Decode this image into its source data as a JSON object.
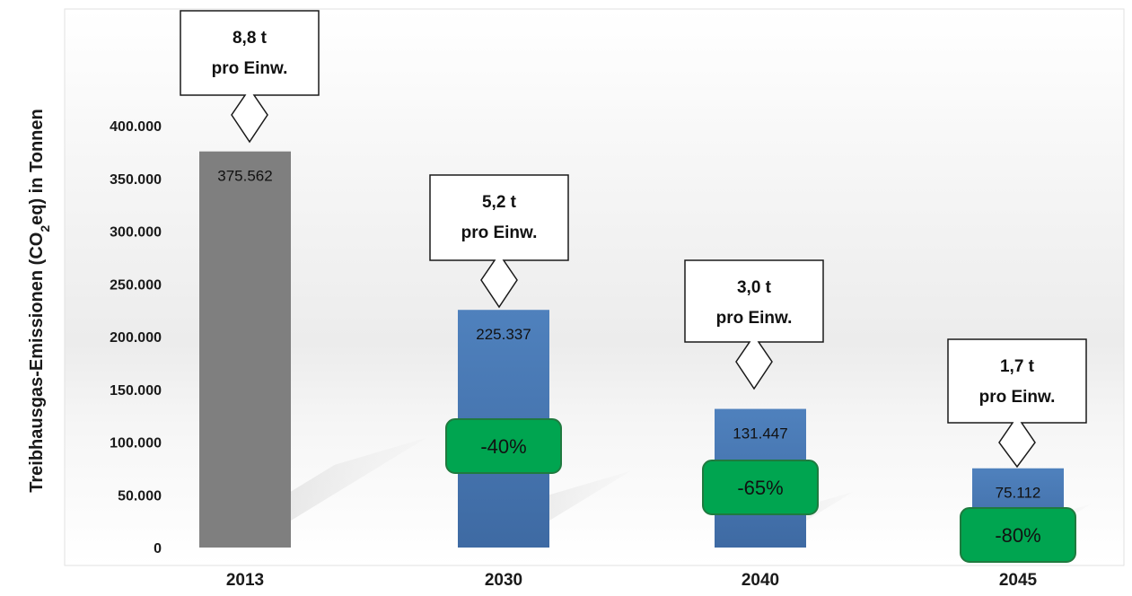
{
  "chart_data": {
    "type": "bar",
    "ylabel_main": "Treibhausgas-Emissionen (CO",
    "ylabel_sub": "2",
    "ylabel_tail": "eq) in Tonnen",
    "ylim": [
      0,
      400000
    ],
    "yticks": [
      {
        "value": 0,
        "label": "0"
      },
      {
        "value": 50000,
        "label": "50.000"
      },
      {
        "value": 100000,
        "label": "100.000"
      },
      {
        "value": 150000,
        "label": "150.000"
      },
      {
        "value": 200000,
        "label": "200.000"
      },
      {
        "value": 250000,
        "label": "250.000"
      },
      {
        "value": 300000,
        "label": "300.000"
      },
      {
        "value": 350000,
        "label": "350.000"
      },
      {
        "value": 400000,
        "label": "400.000"
      }
    ],
    "categories": [
      "2013",
      "2030",
      "2040",
      "2045"
    ],
    "values": [
      375562,
      225337,
      131447,
      75112
    ],
    "value_labels": [
      "375.562",
      "225.337",
      "131.447",
      "75.112"
    ],
    "per_capita": [
      {
        "value": "8,8 t",
        "unit": "pro Einw."
      },
      {
        "value": "5,2 t",
        "unit": "pro Einw."
      },
      {
        "value": "3,0 t",
        "unit": "pro Einw."
      },
      {
        "value": "1,7 t",
        "unit": "pro Einw."
      }
    ],
    "reductions": [
      "",
      "-40%",
      "-65%",
      "-80%"
    ],
    "reduction_values": [
      null,
      40,
      65,
      80
    ],
    "colors": {
      "baseline_bar": "#7f7f7f",
      "target_bar": "#4f81bd",
      "reduction_badge": "#00a550",
      "badge_border": "#1f7a3f"
    },
    "grid": false,
    "legend": "none"
  }
}
